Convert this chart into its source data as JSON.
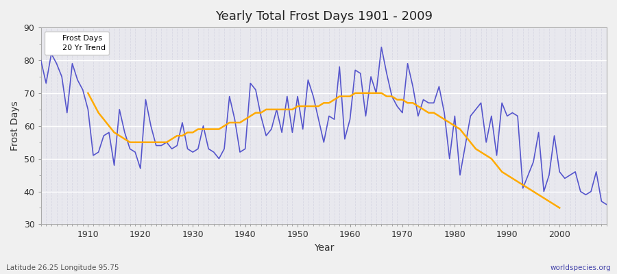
{
  "title": "Yearly Total Frost Days 1901 - 2009",
  "xlabel": "Year",
  "ylabel": "Frost Days",
  "footnote_left": "Latitude 26.25 Longitude 95.75",
  "footnote_right": "worldspecies.org",
  "legend_labels": [
    "Frost Days",
    "20 Yr Trend"
  ],
  "frost_line_color": "#5555cc",
  "trend_line_color": "#ffaa00",
  "bg_color": "#f0f0f0",
  "plot_bg_color": "#e8e8ee",
  "grid_major_color": "#ffffff",
  "grid_minor_color": "#d8d8e4",
  "ylim": [
    30,
    90
  ],
  "xlim": [
    1901,
    2009
  ],
  "yticks": [
    30,
    40,
    50,
    60,
    70,
    80,
    90
  ],
  "xticks": [
    1910,
    1920,
    1930,
    1940,
    1950,
    1960,
    1970,
    1980,
    1990,
    2000
  ],
  "years": [
    1901,
    1902,
    1903,
    1904,
    1905,
    1906,
    1907,
    1908,
    1909,
    1910,
    1911,
    1912,
    1913,
    1914,
    1915,
    1916,
    1917,
    1918,
    1919,
    1920,
    1921,
    1922,
    1923,
    1924,
    1925,
    1926,
    1927,
    1928,
    1929,
    1930,
    1931,
    1932,
    1933,
    1934,
    1935,
    1936,
    1937,
    1938,
    1939,
    1940,
    1941,
    1942,
    1943,
    1944,
    1945,
    1946,
    1947,
    1948,
    1949,
    1950,
    1951,
    1952,
    1953,
    1954,
    1955,
    1956,
    1957,
    1958,
    1959,
    1960,
    1961,
    1962,
    1963,
    1964,
    1965,
    1966,
    1967,
    1968,
    1969,
    1970,
    1971,
    1972,
    1973,
    1974,
    1975,
    1976,
    1977,
    1978,
    1979,
    1980,
    1981,
    1982,
    1983,
    1984,
    1985,
    1986,
    1987,
    1988,
    1989,
    1990,
    1991,
    1992,
    1993,
    1994,
    1995,
    1996,
    1997,
    1998,
    1999,
    2000,
    2001,
    2002,
    2003,
    2004,
    2005,
    2006,
    2007,
    2008,
    2009
  ],
  "frost_values": [
    80,
    73,
    82,
    79,
    75,
    64,
    79,
    74,
    71,
    65,
    51,
    52,
    57,
    58,
    48,
    65,
    58,
    53,
    52,
    47,
    68,
    60,
    54,
    54,
    55,
    53,
    54,
    61,
    53,
    52,
    53,
    60,
    53,
    52,
    50,
    53,
    69,
    62,
    52,
    53,
    73,
    71,
    63,
    57,
    59,
    65,
    58,
    69,
    58,
    69,
    59,
    74,
    69,
    62,
    55,
    63,
    62,
    78,
    56,
    62,
    77,
    76,
    63,
    75,
    70,
    84,
    76,
    69,
    66,
    64,
    79,
    72,
    63,
    68,
    67,
    67,
    72,
    64,
    50,
    63,
    45,
    54,
    63,
    65,
    67,
    55,
    63,
    51,
    67,
    63,
    64,
    63,
    41,
    45,
    49,
    58,
    40,
    45,
    57,
    46,
    44,
    45,
    46,
    40,
    39,
    40,
    46,
    37,
    36
  ],
  "trend_years": [
    1910,
    1911,
    1912,
    1913,
    1914,
    1915,
    1916,
    1917,
    1918,
    1919,
    1920,
    1921,
    1922,
    1923,
    1924,
    1925,
    1926,
    1927,
    1928,
    1929,
    1930,
    1931,
    1932,
    1933,
    1934,
    1935,
    1936,
    1937,
    1938,
    1939,
    1940,
    1941,
    1942,
    1943,
    1944,
    1945,
    1946,
    1947,
    1948,
    1949,
    1950,
    1951,
    1952,
    1953,
    1954,
    1955,
    1956,
    1957,
    1958,
    1959,
    1960,
    1961,
    1962,
    1963,
    1964,
    1965,
    1966,
    1967,
    1968,
    1969,
    1970,
    1971,
    1972,
    1973,
    1974,
    1975,
    1976,
    1977,
    1978,
    1979,
    1980,
    1981,
    1982,
    1983,
    1984,
    1985,
    1986,
    1987,
    1988,
    1989,
    1990,
    1991,
    1992,
    1993,
    1994,
    1995,
    1996,
    1997,
    1998,
    1999,
    2000
  ],
  "trend_values": [
    70,
    67,
    64,
    62,
    60,
    58,
    57,
    56,
    55,
    55,
    55,
    55,
    55,
    55,
    55,
    55,
    56,
    57,
    57,
    58,
    58,
    59,
    59,
    59,
    59,
    59,
    60,
    61,
    61,
    61,
    62,
    63,
    64,
    64,
    65,
    65,
    65,
    65,
    65,
    65,
    66,
    66,
    66,
    66,
    66,
    67,
    67,
    68,
    69,
    69,
    69,
    70,
    70,
    70,
    70,
    70,
    70,
    69,
    69,
    68,
    68,
    67,
    67,
    66,
    65,
    64,
    64,
    63,
    62,
    61,
    60,
    59,
    57,
    55,
    53,
    52,
    51,
    50,
    48,
    46,
    45,
    44,
    43,
    42,
    41,
    40,
    39,
    38,
    37,
    36,
    35
  ]
}
